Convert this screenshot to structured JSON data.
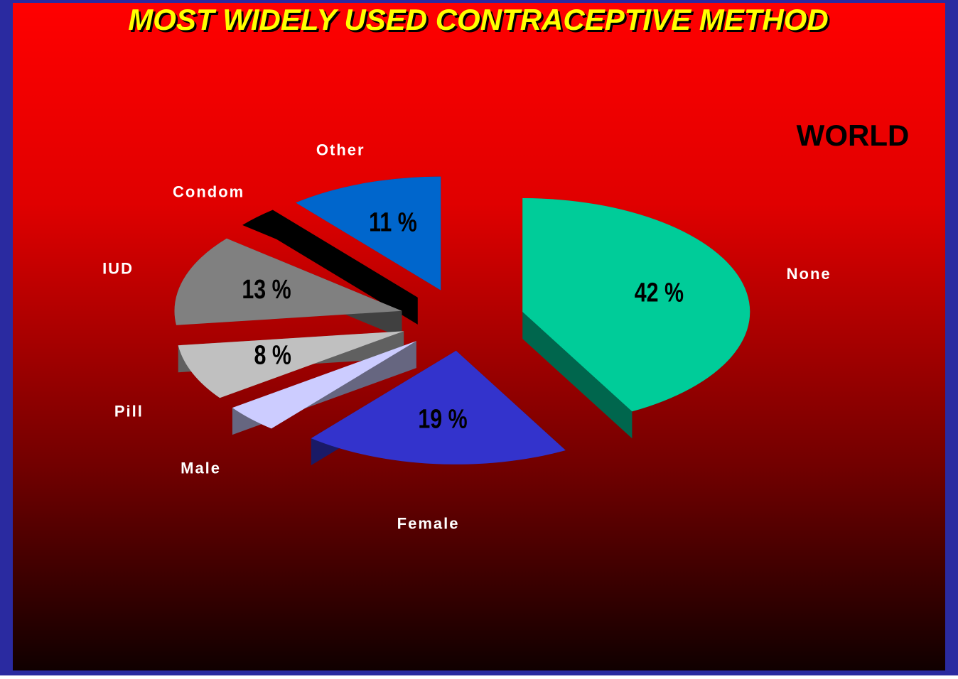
{
  "chart_data": {
    "type": "pie3d",
    "title": "MOST WIDELY USED CONTRACEPTIVE METHOD",
    "subtitle": "WORLD",
    "categories": [
      "None",
      "Female",
      "Male",
      "Pill",
      "IUD",
      "Condom",
      "Other"
    ],
    "values": [
      42,
      19,
      4,
      8,
      13,
      3,
      11
    ],
    "value_labels": [
      "42 %",
      "19 %",
      null,
      "8 %",
      "13 %",
      null,
      "11 %"
    ],
    "colors": [
      "#00cc99",
      "#3333cc",
      "#ccccff",
      "#c0c0c0",
      "#808080",
      "#000000",
      "#0066cc"
    ]
  }
}
